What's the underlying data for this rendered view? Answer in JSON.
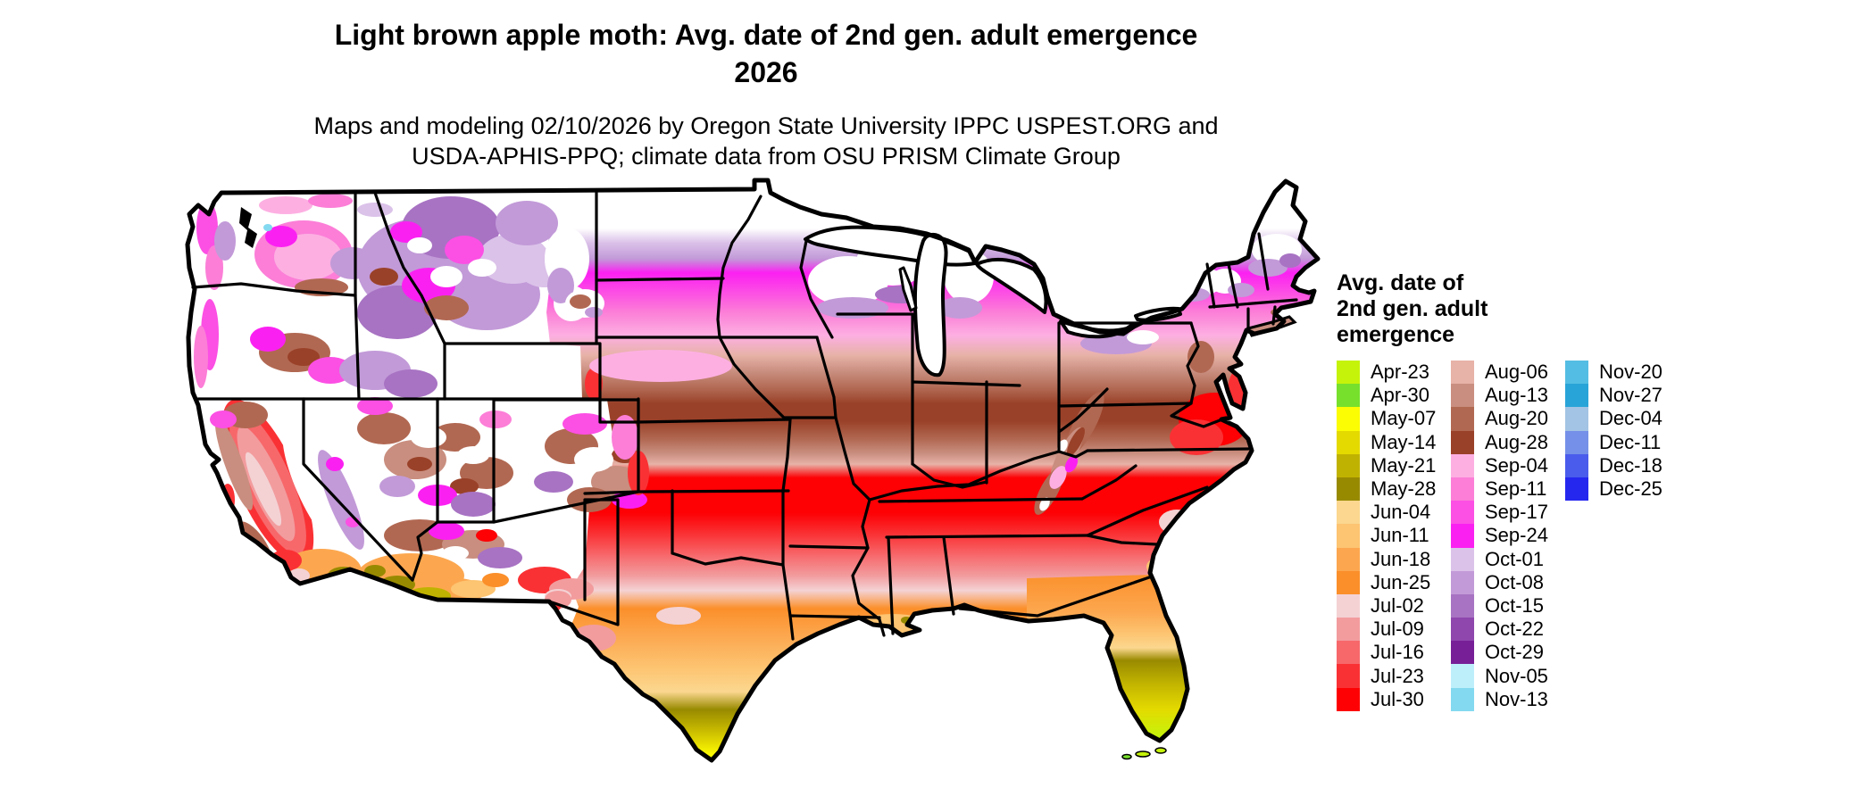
{
  "header": {
    "title_line1": "Light brown apple moth: Avg. date of 2nd gen. adult emergence",
    "title_line2": "2026",
    "subtitle_line1": "Maps and modeling 02/10/2026 by Oregon State University IPPC USPEST.ORG and",
    "subtitle_line2": "USDA-APHIS-PPQ; climate data from OSU PRISM Climate Group"
  },
  "legend": {
    "title_lines": [
      "Avg. date of",
      "2nd gen. adult",
      "emergence"
    ],
    "columns": [
      [
        {
          "label": "Apr-23",
          "color": "#c5f30a"
        },
        {
          "label": "Apr-30",
          "color": "#77e02c"
        },
        {
          "label": "May-07",
          "color": "#fcfc02"
        },
        {
          "label": "May-14",
          "color": "#e4da00"
        },
        {
          "label": "May-21",
          "color": "#c0b200"
        },
        {
          "label": "May-28",
          "color": "#988a00"
        },
        {
          "label": "Jun-04",
          "color": "#fbd78f"
        },
        {
          "label": "Jun-11",
          "color": "#fdc471"
        },
        {
          "label": "Jun-18",
          "color": "#fca74f"
        },
        {
          "label": "Jun-25",
          "color": "#fb8f2a"
        },
        {
          "label": "Jul-02",
          "color": "#f4d2d4"
        },
        {
          "label": "Jul-09",
          "color": "#f29c9e"
        },
        {
          "label": "Jul-16",
          "color": "#f7686b"
        },
        {
          "label": "Jul-23",
          "color": "#fa3134"
        },
        {
          "label": "Jul-30",
          "color": "#fd0105"
        }
      ],
      [
        {
          "label": "Aug-06",
          "color": "#e7b2a7"
        },
        {
          "label": "Aug-13",
          "color": "#c98e7f"
        },
        {
          "label": "Aug-20",
          "color": "#b16852"
        },
        {
          "label": "Aug-28",
          "color": "#9a4129"
        },
        {
          "label": "Sep-04",
          "color": "#fdafe2"
        },
        {
          "label": "Sep-11",
          "color": "#fc7ed7"
        },
        {
          "label": "Sep-17",
          "color": "#fc4fe4"
        },
        {
          "label": "Sep-24",
          "color": "#fb20f2"
        },
        {
          "label": "Oct-01",
          "color": "#dbc2e9"
        },
        {
          "label": "Oct-08",
          "color": "#c29ad8"
        },
        {
          "label": "Oct-15",
          "color": "#a873c3"
        },
        {
          "label": "Oct-22",
          "color": "#8f46ad"
        },
        {
          "label": "Oct-29",
          "color": "#771f97"
        },
        {
          "label": "Nov-05",
          "color": "#bdeffb"
        },
        {
          "label": "Nov-13",
          "color": "#83d9f0"
        }
      ],
      [
        {
          "label": "Nov-20",
          "color": "#54bde3"
        },
        {
          "label": "Nov-27",
          "color": "#29a4d8"
        },
        {
          "label": "Dec-04",
          "color": "#a3c4e4"
        },
        {
          "label": "Dec-11",
          "color": "#7590e8"
        },
        {
          "label": "Dec-18",
          "color": "#4a5cec"
        },
        {
          "label": "Dec-25",
          "color": "#2527ef"
        }
      ]
    ]
  },
  "map": {
    "region": "Continental United States",
    "outline_color": "#000000"
  }
}
